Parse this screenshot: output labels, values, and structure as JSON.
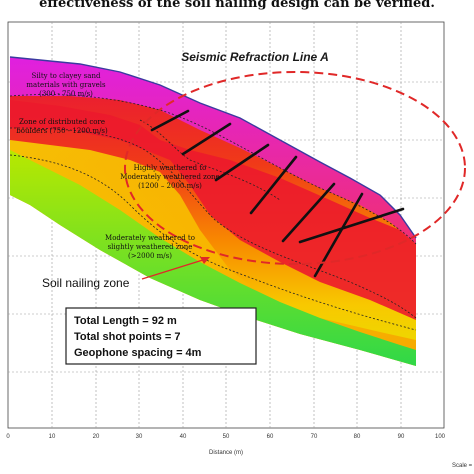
{
  "caption_top": "effectiveness of the soil nailing design can be verified.",
  "title": "Seismic Refraction Line A",
  "layers": [
    {
      "text": "Silty to clayey sand",
      "text2": "materials with gravels",
      "text3": "(300 - 750 m/s)",
      "color": "#e020e0"
    },
    {
      "text": "Zone of distributed core",
      "text2": "boulders (750 - 1200 m/s)",
      "text3": "",
      "color": "#e8003c"
    },
    {
      "text": "Highly weathered to",
      "text2": "Moderately weathered zone",
      "text3": "(1200 – 2000 m/s)",
      "color": "#f8a000"
    },
    {
      "text": "Moderately weathered to",
      "text2": "slightly weathered zone",
      "text3": "(>2000 m/s)",
      "color": "#80e020"
    }
  ],
  "callout": {
    "label": "Soil nailing zone",
    "color": "#e03030"
  },
  "info_box": {
    "line1": "Total Length = 92 m",
    "line2": "Total shot points = 7",
    "line3": "Geophone spacing  = 4m"
  },
  "x_axis": {
    "label": "Distance (m)",
    "ticks": [
      "0",
      "10",
      "20",
      "30",
      "40",
      "50",
      "60",
      "70",
      "80",
      "90",
      "100"
    ]
  },
  "scale_label": "Scale ="
}
